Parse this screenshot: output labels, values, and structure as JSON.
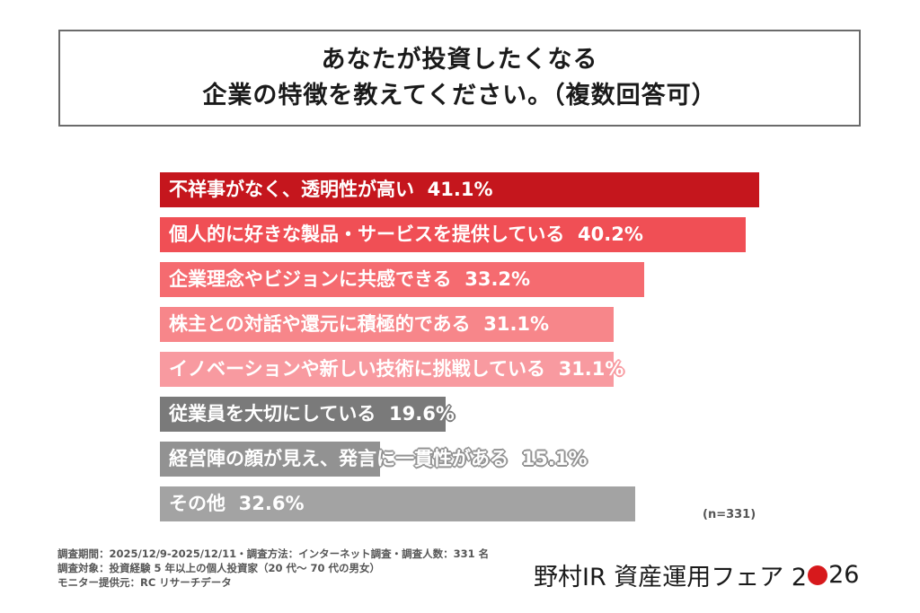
{
  "title": {
    "line1": "あなたが投資したくなる",
    "line2": "企業の特徴を教えてください。（複数回答可）"
  },
  "colors": {
    "bar1": "#c5161d",
    "bar2": "#f04f55",
    "bar3": "#f56b70",
    "bar4": "#f7868a",
    "bar5": "#f89aa0",
    "bar6": "#7a7a7a",
    "bar7": "#929292",
    "bar8": "#a3a3a3",
    "logo_dot": "#d7191c"
  },
  "chart_data": {
    "type": "bar",
    "orientation": "horizontal",
    "title": "あなたが投資したくなる企業の特徴を教えてください。（複数回答可）",
    "categories": [
      "不祥事がなく、透明性が高い",
      "個人的に好きな製品・サービスを提供している",
      "企業理念やビジョンに共感できる",
      "株主との対話や還元に積極的である",
      "イノベーションや新しい技術に挑戦している",
      "従業員を大切にしている",
      "経営陣の顔が見え、発言に一貫性がある",
      "その他"
    ],
    "values": [
      41.1,
      40.2,
      33.2,
      31.1,
      31.1,
      19.6,
      15.1,
      32.6
    ],
    "unit": "%",
    "sample_size": "n=331",
    "xlabel": "",
    "ylabel": "",
    "grid": false,
    "legend": false
  },
  "bars": [
    {
      "label": "不祥事がなく、透明性が高い",
      "value_text": "41.1%"
    },
    {
      "label": "個人的に好きな製品・サービスを提供している",
      "value_text": "40.2%"
    },
    {
      "label": "企業理念やビジョンに共感できる",
      "value_text": "33.2%"
    },
    {
      "label": "株主との対話や還元に積極的である",
      "value_text": "31.1%"
    },
    {
      "label": "イノベーションや新しい技術に挑戦している",
      "value_text": "31.1%"
    },
    {
      "label": "従業員を大切にしている",
      "value_text": "19.6%"
    },
    {
      "label": "経営陣の顔が見え、発言に一貫性がある",
      "value_text": "15.1%"
    },
    {
      "label": "その他",
      "value_text": "32.6%"
    }
  ],
  "n_label": "(n=331)",
  "footnote": {
    "line1": "調査期間：2025/12/9-2025/12/11・調査方法：インターネット調査・調査人数：331 名",
    "line2": "調査対象：投資経験 5 年以上の個人投資家（20 代～ 70 代の男女）",
    "line3": "モニター提供元：RC リサーチデータ"
  },
  "logo": {
    "text_main": "野村IR 資産運用フェア 2",
    "text_end": "26"
  }
}
